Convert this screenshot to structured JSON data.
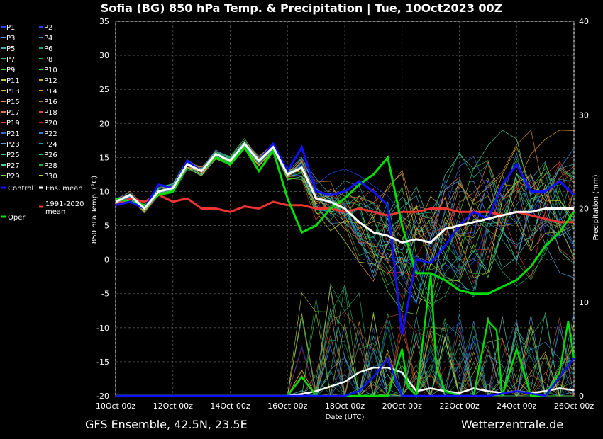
{
  "title": "Sofia  (BG)  850 hPa Temp. & Precipitation | Tue, 10Oct2023 00Z",
  "footer": {
    "model": "GFS Ensemble, 42.5N, 23.5E",
    "site": "Wetterzentrale.de"
  },
  "chart_data": {
    "type": "line",
    "xlabel": "Date (UTC)",
    "ylabel": "850 hPa Temp. (°C)",
    "y2label": "Precipitation (mm)",
    "xlim_days": [
      0,
      16
    ],
    "ylim": [
      -20,
      35
    ],
    "y2lim": [
      0,
      40
    ],
    "x_ticks": [
      "10Oct 00z",
      "12Oct 00z",
      "14Oct 00z",
      "16Oct 00z",
      "18Oct 00z",
      "20Oct 00z",
      "22Oct 00z",
      "24Oct 00z",
      "26Oct 00z"
    ],
    "y_ticks": [
      35,
      30,
      25,
      20,
      15,
      10,
      5,
      0,
      -5,
      -10,
      -15,
      -20
    ],
    "y2_ticks": [
      40,
      30,
      20,
      10,
      0
    ],
    "grid": true,
    "legend_position": "left",
    "legend": [
      {
        "label": "P1",
        "color": "#2244ff"
      },
      {
        "label": "P2",
        "color": "#2244ff"
      },
      {
        "label": "P3",
        "color": "#5599dd"
      },
      {
        "label": "P4",
        "color": "#2f7fbf"
      },
      {
        "label": "P5",
        "color": "#3fb0b0"
      },
      {
        "label": "P6",
        "color": "#22aa77"
      },
      {
        "label": "P7",
        "color": "#33bb88"
      },
      {
        "label": "P8",
        "color": "#22aa55"
      },
      {
        "label": "P9",
        "color": "#44cc44"
      },
      {
        "label": "P10",
        "color": "#33cc33"
      },
      {
        "label": "P11",
        "color": "#bbcc44"
      },
      {
        "label": "P12",
        "color": "#ccaa33"
      },
      {
        "label": "P13",
        "color": "#ddbb33"
      },
      {
        "label": "P14",
        "color": "#dd9922"
      },
      {
        "label": "P15",
        "color": "#cc8844"
      },
      {
        "label": "P16",
        "color": "#bb7733"
      },
      {
        "label": "P17",
        "color": "#dd7744"
      },
      {
        "label": "P18",
        "color": "#cc5533"
      },
      {
        "label": "P19",
        "color": "#dd3333"
      },
      {
        "label": "P20",
        "color": "#bb2222"
      },
      {
        "label": "P21",
        "color": "#3366cc"
      },
      {
        "label": "P22",
        "color": "#2288dd"
      },
      {
        "label": "P23",
        "color": "#55aadd"
      },
      {
        "label": "P24",
        "color": "#2299bb"
      },
      {
        "label": "P25",
        "color": "#33bbaa"
      },
      {
        "label": "P26",
        "color": "#22bb88"
      },
      {
        "label": "P27",
        "color": "#44cc99"
      },
      {
        "label": "P28",
        "color": "#22aa44"
      },
      {
        "label": "P29",
        "color": "#66dd33"
      },
      {
        "label": "P30",
        "color": "#cccc22"
      },
      {
        "label": "Control",
        "color": "#1111ff"
      },
      {
        "label": "Ens. mean",
        "color": "#ffffff"
      },
      {
        "label": "Oper",
        "color": "#00dd00"
      },
      {
        "label": "1991-2020 mean",
        "color": "#ee3333"
      }
    ],
    "series": [
      {
        "name": "1991-2020 mean",
        "color": "#ee3333",
        "x": [
          0,
          0.5,
          1,
          1.5,
          2,
          2.5,
          3,
          3.5,
          4,
          4.5,
          5,
          5.5,
          6,
          6.5,
          7,
          7.5,
          8,
          8.5,
          9,
          9.5,
          10,
          10.5,
          11,
          11.5,
          12,
          12.5,
          13,
          13.5,
          14,
          14.5,
          15,
          15.5,
          16
        ],
        "y": [
          8,
          9,
          8.5,
          9.5,
          8.5,
          9,
          7.5,
          7.5,
          7,
          7.8,
          7.5,
          8.5,
          8,
          8,
          7.5,
          7.5,
          7,
          7.5,
          7,
          6.5,
          7,
          7,
          7.5,
          7.5,
          7,
          7,
          7,
          6.5,
          7,
          6.5,
          6,
          5.5,
          5.5
        ]
      },
      {
        "name": "Ens. mean",
        "color": "#ffffff",
        "x": [
          0,
          0.5,
          1,
          1.5,
          2,
          2.5,
          3,
          3.5,
          4,
          4.5,
          5,
          5.5,
          6,
          6.5,
          7,
          7.5,
          8,
          8.5,
          9,
          9.5,
          10,
          10.5,
          11,
          11.5,
          12,
          12.5,
          13,
          13.5,
          14,
          14.5,
          15,
          15.5,
          16
        ],
        "y": [
          8.5,
          9.5,
          7.5,
          10,
          10.5,
          14,
          13,
          15.5,
          14.5,
          17,
          14.5,
          16.5,
          12.5,
          13.5,
          9,
          8.5,
          7.5,
          5.5,
          4,
          3.5,
          2.5,
          3,
          2.5,
          4.5,
          5,
          5.5,
          6,
          6.5,
          7,
          7,
          7.5,
          7.5,
          7.5
        ]
      },
      {
        "name": "Oper",
        "color": "#00dd00",
        "x": [
          0,
          0.5,
          1,
          1.5,
          2,
          2.5,
          3,
          3.5,
          4,
          4.5,
          5,
          5.5,
          6,
          6.5,
          7,
          7.5,
          8,
          8.5,
          9,
          9.5,
          10,
          10.5,
          11,
          11.5,
          12,
          12.5,
          13,
          13.5,
          14,
          14.5,
          15,
          15.5,
          16
        ],
        "y": [
          9,
          8.5,
          8,
          9.5,
          10,
          14,
          13,
          15,
          14,
          16.5,
          13,
          16,
          9,
          4,
          5,
          7.5,
          9,
          11,
          12.5,
          15,
          5,
          -2,
          -2,
          -3,
          -4.5,
          -5,
          -5,
          -4,
          -3,
          -1,
          2,
          4,
          7
        ]
      },
      {
        "name": "Control",
        "color": "#1111ff",
        "x": [
          0,
          0.5,
          1,
          1.5,
          2,
          2.5,
          3,
          3.5,
          4,
          4.5,
          5,
          5.5,
          6,
          6.5,
          7,
          7.5,
          8,
          8.5,
          9,
          9.5,
          10,
          10.5,
          11,
          11.5,
          12,
          12.5,
          13,
          13.5,
          14,
          14.5,
          15,
          15.5,
          16
        ],
        "y": [
          8,
          8.5,
          7.5,
          11,
          10.5,
          14.5,
          13,
          15.5,
          14.5,
          17,
          14.5,
          17,
          13,
          16.5,
          10,
          9.5,
          10,
          11.5,
          10,
          8,
          -11,
          0,
          -0.5,
          2,
          5,
          7,
          6,
          11,
          14,
          10,
          10,
          11.5,
          9.5
        ]
      }
    ],
    "precipitation": {
      "y2_unit": "mm",
      "series": [
        {
          "name": "Ens. mean",
          "color": "#ffffff",
          "x": [
            0,
            1,
            2,
            3,
            4,
            5,
            6,
            6.5,
            7,
            7.5,
            8,
            8.5,
            9,
            9.5,
            10,
            10.5,
            11,
            11.5,
            12,
            12.5,
            13,
            13.5,
            14,
            14.5,
            15,
            15.5,
            16
          ],
          "y": [
            0,
            0,
            0,
            0,
            0,
            0,
            0,
            0.2,
            0.5,
            1,
            1.5,
            2.5,
            3,
            3,
            2.5,
            0.5,
            0.8,
            0.5,
            0.3,
            0.8,
            0.5,
            0.3,
            0.5,
            0.3,
            0.5,
            0.8,
            0.6
          ]
        },
        {
          "name": "Oper",
          "color": "#00dd00",
          "x": [
            0,
            1,
            2,
            3,
            4,
            5,
            6,
            6.5,
            7,
            7.5,
            8,
            8.5,
            9,
            9.5,
            10,
            10.2,
            10.5,
            11,
            11.2,
            11.5,
            12,
            12.5,
            13,
            13.3,
            13.5,
            14,
            14.5,
            15,
            15.5,
            15.8,
            16
          ],
          "y": [
            0,
            0,
            0,
            0,
            0,
            0,
            0,
            2,
            0,
            0,
            0,
            0,
            0,
            0,
            5,
            1,
            0,
            13,
            3,
            0.5,
            0,
            0,
            8,
            7,
            0,
            5,
            0,
            0,
            2.5,
            8,
            4
          ]
        },
        {
          "name": "Control",
          "color": "#1111ff",
          "x": [
            0,
            1,
            2,
            3,
            4,
            5,
            6,
            7,
            8,
            8.5,
            9,
            9.5,
            10,
            10.3,
            10.6,
            11,
            12,
            13,
            14,
            15,
            15.5,
            16
          ],
          "y": [
            0,
            0,
            0,
            0,
            0,
            0,
            0,
            0,
            0,
            0.5,
            2,
            4,
            0,
            0,
            0,
            0,
            0,
            0,
            0.5,
            0,
            2,
            4
          ]
        }
      ]
    }
  }
}
